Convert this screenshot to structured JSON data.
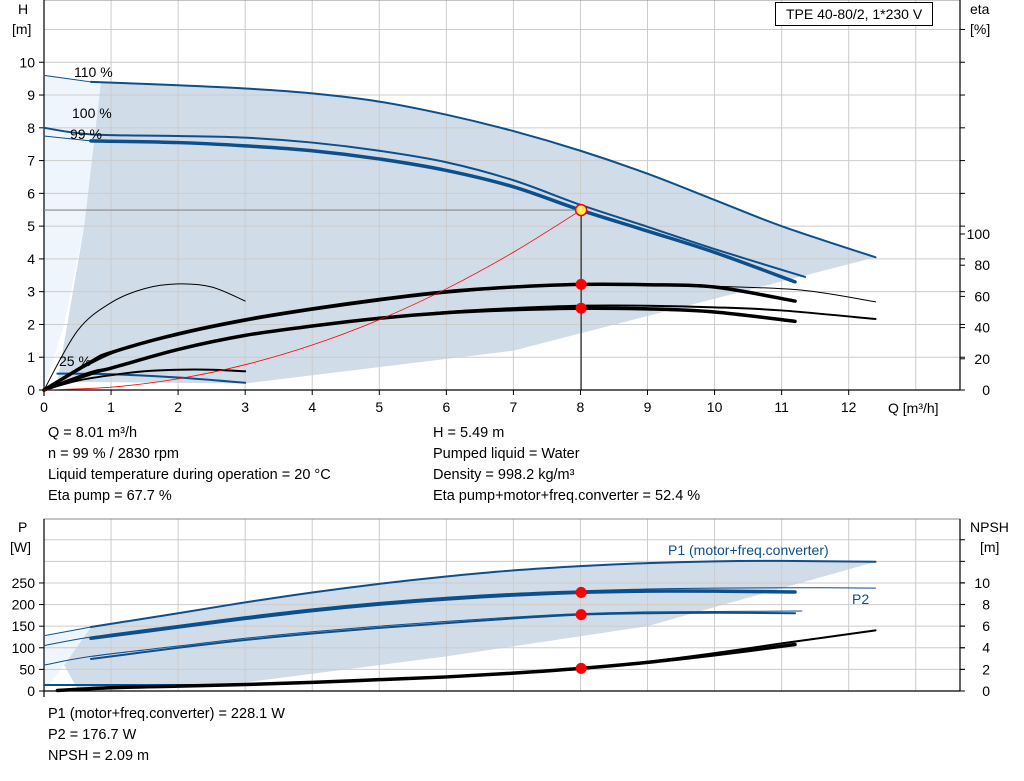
{
  "top_chart": {
    "title_box": "TPE 40-80/2, 1*230 V",
    "y_label": "H",
    "y_unit": "[m]",
    "y2_label": "eta",
    "y2_unit": "[%]",
    "x_label": "Q [m³/h]"
  },
  "top_info": {
    "left": [
      "Q = 8.01 m³/h",
      "n = 99 % / 2830 rpm",
      "Liquid temperature during operation = 20 °C",
      "Eta pump = 67.7 %"
    ],
    "right": [
      "H = 5.49 m",
      "Pumped liquid = Water",
      "Density = 998.2 kg/m³",
      "Eta pump+motor+freq.converter = 52.4 %"
    ]
  },
  "bottom_chart": {
    "y_label": "P",
    "y_unit": "[W]",
    "y2_label": "NPSH",
    "y2_unit": "[m]",
    "p1_label": "P1 (motor+freq.converter)",
    "p2_label": "P2"
  },
  "bottom_info": [
    "P1 (motor+freq.converter) = 228.1 W",
    "P2 = 176.7 W",
    "NPSH = 2.09 m"
  ],
  "chart_data": [
    {
      "type": "line",
      "xlabel": "Q [m³/h]",
      "ylabel": "H [m]",
      "y2label": "eta [%]",
      "xlim": [
        0,
        13.66
      ],
      "ylim": [
        0,
        11.9
      ],
      "y2lim": [
        0,
        250
      ],
      "x_ticks": [
        0,
        1,
        2,
        3,
        4,
        5,
        6,
        7,
        8,
        9,
        10,
        11,
        12
      ],
      "y_ticks": [
        0,
        1,
        2,
        3,
        4,
        5,
        6,
        7,
        8,
        9,
        10
      ],
      "y2_ticks": [
        0,
        20,
        40,
        60,
        80,
        100
      ],
      "grid": true,
      "curve_labels": [
        "110 %",
        "100 %",
        "99 %",
        "25 %"
      ],
      "series": [
        {
          "id": "h110",
          "axis": "y",
          "style": "medium",
          "color": "#0d4f8b",
          "x": [
            0.7,
            2,
            3,
            4,
            5,
            6,
            7,
            8,
            9,
            10,
            11,
            12.4
          ],
          "y": [
            9.4,
            9.3,
            9.2,
            9.05,
            8.8,
            8.4,
            7.9,
            7.3,
            6.6,
            5.8,
            5.0,
            4.05
          ]
        },
        {
          "id": "h110-ext",
          "axis": "y",
          "style": "thin",
          "color": "#0d4f8b",
          "x": [
            0,
            0.7
          ],
          "y": [
            9.6,
            9.4
          ]
        },
        {
          "id": "h100",
          "axis": "y",
          "style": "medium",
          "color": "#0d4f8b",
          "x": [
            0,
            0.7,
            2,
            3,
            4,
            5,
            6,
            7,
            8,
            9,
            10,
            11.35
          ],
          "y": [
            8.0,
            7.8,
            7.75,
            7.7,
            7.55,
            7.3,
            6.95,
            6.4,
            5.65,
            4.98,
            4.3,
            3.45
          ]
        },
        {
          "id": "h99",
          "axis": "y",
          "style": "thick",
          "color": "#0d4f8b",
          "x": [
            0.7,
            2,
            3,
            4,
            5,
            6,
            7,
            8,
            9,
            10,
            11.2
          ],
          "y": [
            7.6,
            7.55,
            7.45,
            7.3,
            7.05,
            6.7,
            6.2,
            5.49,
            4.85,
            4.2,
            3.3
          ]
        },
        {
          "id": "h99-ext",
          "axis": "y",
          "style": "thin",
          "color": "#0d4f8b",
          "x": [
            0,
            0.7
          ],
          "y": [
            7.75,
            7.6
          ]
        },
        {
          "id": "h25",
          "axis": "y",
          "style": "medium",
          "color": "#0d4f8b",
          "x": [
            0.2,
            1,
            2,
            3
          ],
          "y": [
            0.5,
            0.48,
            0.38,
            0.22
          ]
        },
        {
          "id": "eta-pump",
          "axis": "y2",
          "style": "thick",
          "color": "#000000",
          "x": [
            0,
            0.7,
            1,
            2,
            3,
            4,
            5,
            6,
            7,
            8,
            9,
            10,
            11.2
          ],
          "y": [
            0,
            18,
            24,
            36,
            45,
            52,
            58,
            63,
            66,
            67.7,
            67.5,
            66,
            57
          ]
        },
        {
          "id": "eta-pump-100",
          "axis": "y2",
          "style": "thin",
          "color": "#000000",
          "x": [
            0,
            1,
            2,
            3,
            4,
            5,
            6,
            7,
            8,
            9,
            10,
            11.3,
            12.4
          ],
          "y": [
            0,
            23,
            35,
            44,
            51,
            57,
            62,
            65.5,
            67.5,
            67.5,
            66.5,
            64,
            56.5
          ]
        },
        {
          "id": "eta-total",
          "axis": "y2",
          "style": "thick",
          "color": "#000000",
          "x": [
            0,
            0.7,
            1,
            2,
            3,
            4,
            5,
            6,
            7,
            8,
            9,
            10,
            11.2
          ],
          "y": [
            0,
            11,
            14,
            26,
            35,
            41,
            46,
            49.5,
            51.5,
            52.4,
            52,
            50,
            44
          ]
        },
        {
          "id": "eta-total-100",
          "axis": "y2",
          "style": "medium",
          "color": "#000000",
          "x": [
            0,
            1,
            2,
            3,
            4,
            5,
            6,
            7,
            8,
            9,
            10,
            11,
            12.4
          ],
          "y": [
            0,
            14,
            26,
            35,
            41,
            46,
            50,
            52.5,
            54,
            54,
            53,
            51,
            45.5
          ]
        },
        {
          "id": "eta-pump-25",
          "axis": "y2",
          "style": "thin",
          "color": "#000000",
          "x": [
            0,
            0.5,
            1,
            1.5,
            2,
            2.5,
            3
          ],
          "y": [
            0,
            38,
            56,
            65,
            68,
            66,
            57
          ]
        },
        {
          "id": "eta-total-25",
          "axis": "y2",
          "style": "medium",
          "color": "#000000",
          "x": [
            0,
            0.5,
            1,
            1.5,
            2,
            2.5,
            3
          ],
          "y": [
            0,
            6,
            9.5,
            12,
            13,
            13,
            12
          ]
        },
        {
          "id": "system-curve",
          "axis": "y",
          "style": "hair",
          "color": "#ff0000",
          "x": [
            0,
            1,
            2,
            3,
            4,
            5,
            6,
            7,
            8.01
          ],
          "y": [
            0,
            0.086,
            0.343,
            0.772,
            1.372,
            2.144,
            3.088,
            4.203,
            5.49
          ]
        }
      ],
      "operating_point": {
        "q": 8.01,
        "h": 5.49,
        "eta_pump": 67.7,
        "eta_total": 52.4
      }
    },
    {
      "type": "line",
      "ylabel": "P [W]",
      "y2label": "NPSH [m]",
      "xlim": [
        0,
        13.66
      ],
      "ylim": [
        0,
        398
      ],
      "y2lim": [
        0,
        15.9
      ],
      "y_ticks": [
        0,
        50,
        100,
        150,
        200,
        250
      ],
      "y2_ticks": [
        0,
        2,
        4,
        6,
        8,
        10
      ],
      "grid": true,
      "series": [
        {
          "id": "p1-110",
          "axis": "y",
          "style": "medium",
          "color": "#0d4f8b",
          "x": [
            0.7,
            2,
            3,
            4,
            5,
            6,
            7,
            8,
            9,
            10,
            11,
            12.4
          ],
          "y": [
            148,
            180,
            205,
            228,
            248,
            265,
            279,
            289,
            296,
            300,
            301,
            299
          ]
        },
        {
          "id": "p1-110-ext",
          "axis": "y",
          "style": "thin",
          "color": "#0d4f8b",
          "x": [
            0,
            0.7
          ],
          "y": [
            128,
            148
          ]
        },
        {
          "id": "p1-99",
          "axis": "y",
          "style": "thick",
          "color": "#0d4f8b",
          "x": [
            0.7,
            2,
            3,
            4,
            5,
            6,
            7,
            8,
            9,
            10,
            11.2
          ],
          "y": [
            122,
            148,
            168,
            186,
            201,
            213,
            222,
            228.1,
            231,
            231,
            229
          ]
        },
        {
          "id": "p1-100",
          "axis": "y",
          "style": "thin",
          "color": "#0d4f8b",
          "x": [
            0,
            0.7,
            2,
            3,
            4,
            5,
            6,
            7,
            8,
            9,
            10,
            11.3,
            12.4
          ],
          "y": [
            105,
            125,
            152,
            172,
            190,
            205,
            217,
            226,
            232,
            236,
            238,
            239,
            238
          ]
        },
        {
          "id": "p2-99",
          "axis": "y",
          "style": "medium",
          "color": "#0d4f8b",
          "x": [
            0.7,
            2,
            3,
            4,
            5,
            6,
            7,
            8,
            9,
            10,
            11.2
          ],
          "y": [
            74,
            100,
            118,
            133,
            146,
            157,
            168,
            176.7,
            180,
            181,
            180
          ]
        },
        {
          "id": "p2-100",
          "axis": "y",
          "style": "thin",
          "color": "#0d4f8b",
          "x": [
            0,
            0.7,
            2,
            3,
            4,
            5,
            6,
            7,
            8,
            9,
            10,
            11.3
          ],
          "y": [
            60,
            80,
            104,
            122,
            137,
            150,
            161,
            171,
            179,
            183,
            184,
            185
          ]
        },
        {
          "id": "p1-25",
          "axis": "y",
          "style": "medium",
          "color": "#0d4f8b",
          "x": [
            0,
            3
          ],
          "y": [
            14,
            14
          ]
        },
        {
          "id": "npsh",
          "axis": "y2",
          "style": "thick",
          "color": "#000000",
          "x": [
            0.2,
            1,
            2,
            3,
            4,
            5,
            6,
            7,
            8,
            9,
            10,
            11.2
          ],
          "y": [
            0.05,
            0.3,
            0.45,
            0.6,
            0.8,
            1.05,
            1.3,
            1.65,
            2.09,
            2.65,
            3.35,
            4.3
          ]
        },
        {
          "id": "npsh-110",
          "axis": "y2",
          "style": "medium",
          "color": "#000000",
          "x": [
            8,
            9,
            10,
            11,
            12.4
          ],
          "y": [
            2.09,
            2.7,
            3.5,
            4.4,
            5.6
          ]
        }
      ],
      "operating_point": {
        "p1": 228.1,
        "p2": 176.7,
        "npsh": 2.09
      }
    }
  ],
  "colors": {
    "curve_blue": "#0d4f8b",
    "area": "#d0dce8",
    "area_light": "#eef5fc",
    "point": "#ff0000",
    "op_fill": "#ffee55"
  }
}
